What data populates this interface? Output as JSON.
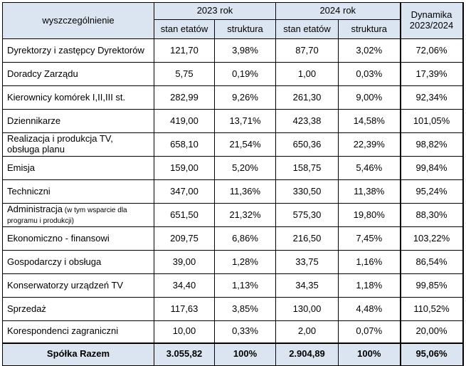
{
  "header": {
    "category": "wyszczególnienie",
    "year1": "2023 rok",
    "year2": "2024 rok",
    "dynamics": "Dynamika\n2023/2024",
    "sub_staff": "stan etatów",
    "sub_structure": "struktura"
  },
  "rows": [
    {
      "name": "Dyrektorzy i zastępcy Dyrektorów",
      "name_note": "",
      "s2023": "121,70",
      "p2023": "3,98%",
      "s2024": "87,70",
      "p2024": "3,02%",
      "dyn": "72,06%"
    },
    {
      "name": "Doradcy Zarządu",
      "name_note": "",
      "s2023": "5,75",
      "p2023": "0,19%",
      "s2024": "1,00",
      "p2024": "0,03%",
      "dyn": "17,39%"
    },
    {
      "name": "Kierownicy komórek I,II,III st.",
      "name_note": "",
      "s2023": "282,99",
      "p2023": "9,26%",
      "s2024": "261,30",
      "p2024": "9,00%",
      "dyn": "92,34%"
    },
    {
      "name": "Dziennikarze",
      "name_note": "",
      "s2023": "419,00",
      "p2023": "13,71%",
      "s2024": "423,38",
      "p2024": "14,58%",
      "dyn": "101,05%"
    },
    {
      "name": "Realizacja i produkcja TV,\nobsługa planu",
      "name_note": "",
      "s2023": "658,10",
      "p2023": "21,54%",
      "s2024": "650,36",
      "p2024": "22,39%",
      "dyn": "98,82%"
    },
    {
      "name": "Emisja",
      "name_note": "",
      "s2023": "159,00",
      "p2023": "5,20%",
      "s2024": "158,75",
      "p2024": "5,46%",
      "dyn": "99,84%"
    },
    {
      "name": "Techniczni",
      "name_note": "",
      "s2023": "347,00",
      "p2023": "11,36%",
      "s2024": "330,50",
      "p2024": "11,38%",
      "dyn": "95,24%"
    },
    {
      "name": "Administracja",
      "name_note": " (w tym wsparcie dla\nprogramu i produkcji)",
      "s2023": "651,50",
      "p2023": "21,32%",
      "s2024": "575,30",
      "p2024": "19,80%",
      "dyn": "88,30%"
    },
    {
      "name": "Ekonomiczno - finansowi",
      "name_note": "",
      "s2023": "209,75",
      "p2023": "6,86%",
      "s2024": "216,50",
      "p2024": "7,45%",
      "dyn": "103,22%"
    },
    {
      "name": "Gospodarczy i obsługa",
      "name_note": "",
      "s2023": "39,00",
      "p2023": "1,28%",
      "s2024": "33,75",
      "p2024": "1,16%",
      "dyn": "86,54%"
    },
    {
      "name": "Konserwatorzy urządzeń TV",
      "name_note": "",
      "s2023": "34,40",
      "p2023": "1,13%",
      "s2024": "34,35",
      "p2024": "1,18%",
      "dyn": "99,85%"
    },
    {
      "name": "Sprzedaż",
      "name_note": "",
      "s2023": "117,63",
      "p2023": "3,85%",
      "s2024": "130,00",
      "p2024": "4,48%",
      "dyn": "110,52%"
    },
    {
      "name": "Korespondenci zagraniczni",
      "name_note": "",
      "s2023": "10,00",
      "p2023": "0,33%",
      "s2024": "2,00",
      "p2024": "0,07%",
      "dyn": "20,00%"
    }
  ],
  "total": {
    "name": "Spółka Razem",
    "s2023": "3.055,82",
    "p2023": "100%",
    "s2024": "2.904,89",
    "p2024": "100%",
    "dyn": "95,06%"
  },
  "colors": {
    "header_bg": "#dbe5f1",
    "border": "#000000"
  }
}
